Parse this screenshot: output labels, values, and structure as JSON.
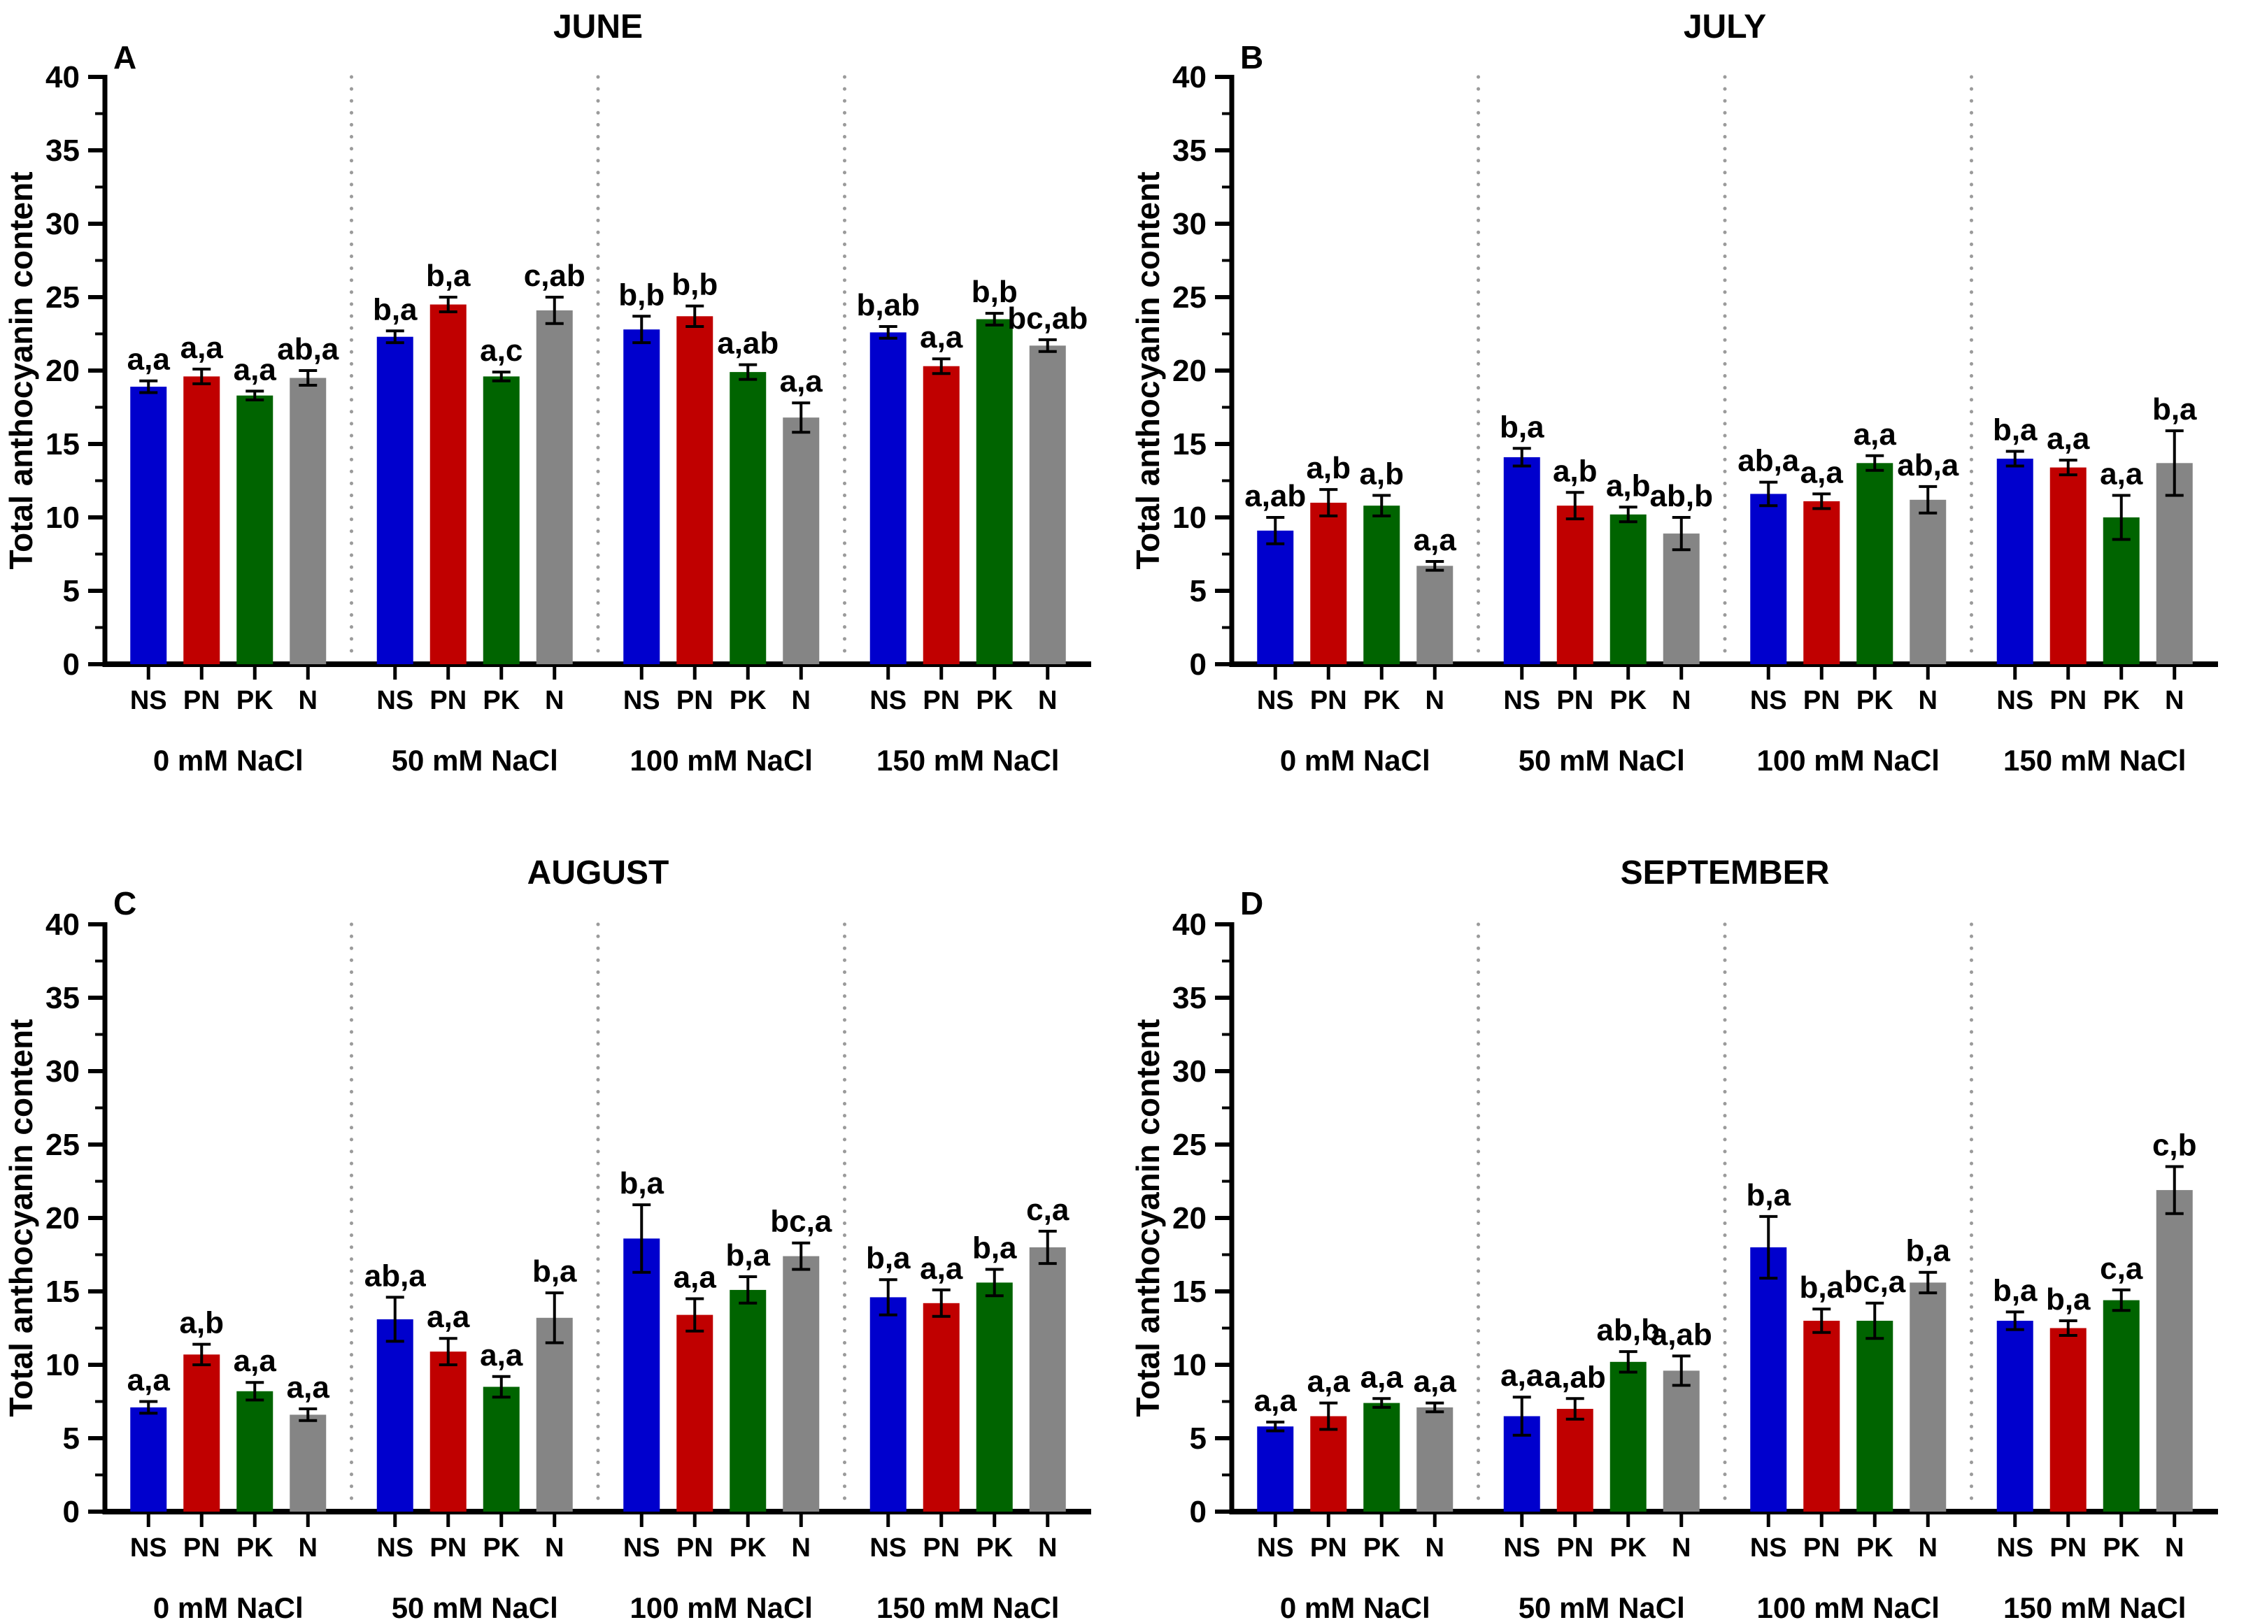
{
  "figure": {
    "y_axis_label": "Total anthocyanin content",
    "x_tick_labels": [
      "NS",
      "PN",
      "PK",
      "N"
    ],
    "group_labels": [
      "0 mM NaCl",
      "50 mM NaCl",
      "100 mM NaCl",
      "150 mM NaCl"
    ],
    "colors": {
      "NS": "#0000CD",
      "PN": "#C00000",
      "PK": "#006400",
      "N": "#858585"
    },
    "separator_color": "#9B9B9B",
    "axis_color": "#000000"
  },
  "chart_data": [
    {
      "type": "bar",
      "panel": "A",
      "title": "JUNE",
      "ylabel": "Total anthocyanin content",
      "ylim": [
        0,
        40
      ],
      "ytick_step": 5,
      "categories": [
        "0 mM NaCl",
        "50 mM NaCl",
        "100 mM NaCl",
        "150 mM NaCl"
      ],
      "series": [
        {
          "name": "NS",
          "values": [
            18.9,
            22.3,
            22.8,
            22.6
          ],
          "errors": [
            0.4,
            0.4,
            0.9,
            0.4
          ],
          "letters": [
            "a,a",
            "b,a",
            "b,b",
            "b,ab"
          ]
        },
        {
          "name": "PN",
          "values": [
            19.6,
            24.5,
            23.7,
            20.3
          ],
          "errors": [
            0.5,
            0.5,
            0.7,
            0.5
          ],
          "letters": [
            "a,a",
            "b,a",
            "b,b",
            "a,a"
          ]
        },
        {
          "name": "PK",
          "values": [
            18.3,
            19.6,
            19.9,
            23.5
          ],
          "errors": [
            0.3,
            0.3,
            0.5,
            0.4
          ],
          "letters": [
            "a,a",
            "a,c",
            "a,ab",
            "b,b"
          ]
        },
        {
          "name": "N",
          "values": [
            19.5,
            24.1,
            16.8,
            21.7
          ],
          "errors": [
            0.5,
            0.9,
            1.0,
            0.4
          ],
          "letters": [
            "ab,a",
            "c,ab",
            "a,a",
            "bc,ab"
          ]
        }
      ]
    },
    {
      "type": "bar",
      "panel": "B",
      "title": "JULY",
      "ylabel": "Total anthocyanin content",
      "ylim": [
        0,
        40
      ],
      "ytick_step": 5,
      "categories": [
        "0 mM NaCl",
        "50 mM NaCl",
        "100 mM NaCl",
        "150 mM NaCl"
      ],
      "series": [
        {
          "name": "NS",
          "values": [
            9.1,
            14.1,
            11.6,
            14.0
          ],
          "errors": [
            0.9,
            0.6,
            0.8,
            0.5
          ],
          "letters": [
            "a,ab",
            "b,a",
            "ab,a",
            "b,a"
          ]
        },
        {
          "name": "PN",
          "values": [
            11.0,
            10.8,
            11.1,
            13.4
          ],
          "errors": [
            0.9,
            0.9,
            0.5,
            0.5
          ],
          "letters": [
            "a,b",
            "a,b",
            "a,a",
            "a,a"
          ]
        },
        {
          "name": "PK",
          "values": [
            10.8,
            10.2,
            13.7,
            10.0
          ],
          "errors": [
            0.7,
            0.5,
            0.5,
            1.5
          ],
          "letters": [
            "a,b",
            "a,b",
            "a,a",
            "a,a"
          ]
        },
        {
          "name": "N",
          "values": [
            6.7,
            8.9,
            11.2,
            13.7
          ],
          "errors": [
            0.3,
            1.1,
            0.9,
            2.2
          ],
          "letters": [
            "a,a",
            "ab,b",
            "ab,a",
            "b,a"
          ]
        }
      ]
    },
    {
      "type": "bar",
      "panel": "C",
      "title": "AUGUST",
      "ylabel": "Total anthocyanin content",
      "ylim": [
        0,
        40
      ],
      "ytick_step": 5,
      "categories": [
        "0 mM NaCl",
        "50 mM NaCl",
        "100 mM NaCl",
        "150 mM NaCl"
      ],
      "series": [
        {
          "name": "NS",
          "values": [
            7.1,
            13.1,
            18.6,
            14.6
          ],
          "errors": [
            0.4,
            1.5,
            2.3,
            1.2
          ],
          "letters": [
            "a,a",
            "ab,a",
            "b,a",
            "b,a"
          ]
        },
        {
          "name": "PN",
          "values": [
            10.7,
            10.9,
            13.4,
            14.2
          ],
          "errors": [
            0.7,
            0.9,
            1.1,
            0.9
          ],
          "letters": [
            "a,b",
            "a,a",
            "a,a",
            "a,a"
          ]
        },
        {
          "name": "PK",
          "values": [
            8.2,
            8.5,
            15.1,
            15.6
          ],
          "errors": [
            0.6,
            0.7,
            0.9,
            0.9
          ],
          "letters": [
            "a,a",
            "a,a",
            "b,a",
            "b,a"
          ]
        },
        {
          "name": "N",
          "values": [
            6.6,
            13.2,
            17.4,
            18.0
          ],
          "errors": [
            0.4,
            1.7,
            0.9,
            1.1
          ],
          "letters": [
            "a,a",
            "b,a",
            "bc,a",
            "c,a"
          ]
        }
      ]
    },
    {
      "type": "bar",
      "panel": "D",
      "title": "SEPTEMBER",
      "ylabel": "Total anthocyanin content",
      "ylim": [
        0,
        40
      ],
      "ytick_step": 5,
      "categories": [
        "0 mM NaCl",
        "50 mM NaCl",
        "100 mM NaCl",
        "150 mM NaCl"
      ],
      "series": [
        {
          "name": "NS",
          "values": [
            5.8,
            6.5,
            18.0,
            13.0
          ],
          "errors": [
            0.3,
            1.3,
            2.1,
            0.6
          ],
          "letters": [
            "a,a",
            "a,a",
            "b,a",
            "b,a"
          ]
        },
        {
          "name": "PN",
          "values": [
            6.5,
            7.0,
            13.0,
            12.5
          ],
          "errors": [
            0.9,
            0.7,
            0.8,
            0.5
          ],
          "letters": [
            "a,a",
            "a,ab",
            "b,a",
            "b,a"
          ]
        },
        {
          "name": "PK",
          "values": [
            7.4,
            10.2,
            13.0,
            14.4
          ],
          "errors": [
            0.3,
            0.7,
            1.2,
            0.7
          ],
          "letters": [
            "a,a",
            "ab,b",
            "bc,a",
            "c,a"
          ]
        },
        {
          "name": "N",
          "values": [
            7.1,
            9.6,
            15.6,
            21.9
          ],
          "errors": [
            0.3,
            1.0,
            0.7,
            1.6
          ],
          "letters": [
            "a,a",
            "a,ab",
            "b,a",
            "c,b"
          ]
        }
      ]
    }
  ]
}
